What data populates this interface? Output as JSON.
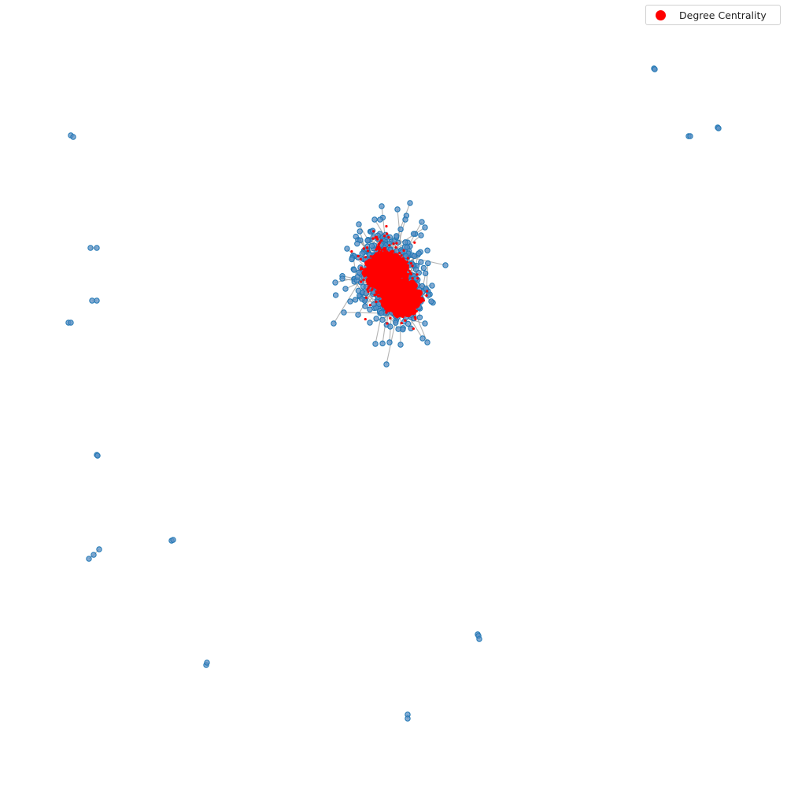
{
  "legend": {
    "label": "Degree Centrality",
    "location": "top-right"
  },
  "colors": {
    "node_fill": "#5a8fc4",
    "node_stroke": "#1f77b4",
    "edge": "#9a9a9a",
    "centrality": "#ff0000"
  },
  "chart_data": {
    "type": "network",
    "grid": false,
    "axes_visible": false,
    "main_component": "single dense cluster near the center, heavily overlaid with red degree-centrality markers",
    "isolated_components": 13
  }
}
